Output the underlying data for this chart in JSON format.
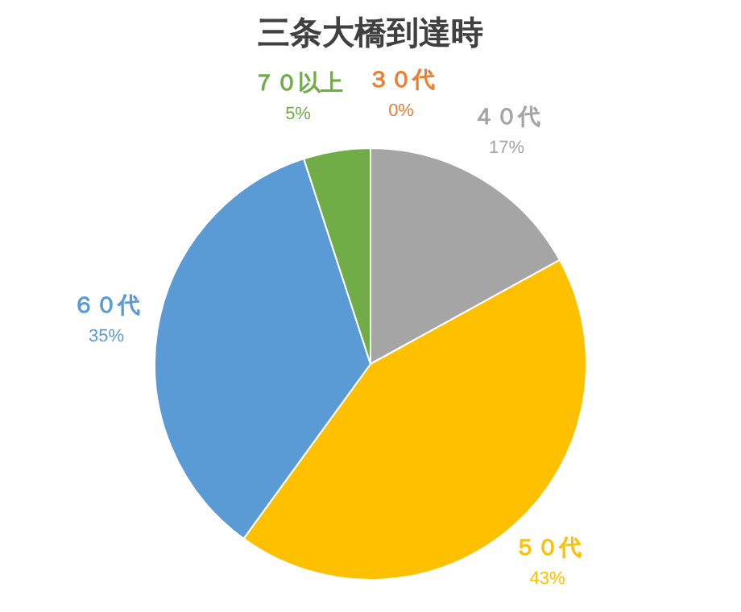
{
  "chart_data": {
    "type": "pie",
    "title": "三条大橋到達時",
    "categories": [
      "３０代",
      "４０代",
      "５０代",
      "６０代",
      "７０以上"
    ],
    "values": [
      0,
      17,
      43,
      35,
      5
    ],
    "value_labels": [
      "0%",
      "17%",
      "43%",
      "35%",
      "5%"
    ],
    "colors": [
      "#ed7d31",
      "#a5a5a5",
      "#ffc000",
      "#5b9bd5",
      "#70ad47"
    ]
  }
}
